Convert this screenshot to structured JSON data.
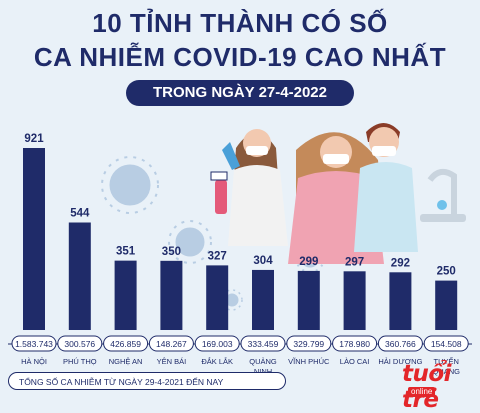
{
  "header": {
    "line1": "10 TỈNH THÀNH CÓ SỐ",
    "line2": "CA NHIỄM COVID-19 CAO NHẤT",
    "subtitle": "TRONG NGÀY 27-4-2022"
  },
  "footer": {
    "note": "TỔNG SỐ CA NHIỄM TỪ NGÀY 29-4-2021 ĐẾN NAY"
  },
  "logo": {
    "main": "tuổi trẻ",
    "sub": "online"
  },
  "colors": {
    "bar": "#1f2b69",
    "virus": "#b8cde3",
    "accent": "#e3262a"
  },
  "chart_data": {
    "type": "bar",
    "categories": [
      "HÀ NỘI",
      "PHÚ THỌ",
      "NGHỆ AN",
      "YÊN BÁI",
      "ĐẮK LẮK",
      "QUẢNG NINH",
      "VĨNH PHÚC",
      "LÀO CAI",
      "HẢI DƯƠNG",
      "TUYỂN QUANG"
    ],
    "category_lines": [
      [
        "HÀ NỘI"
      ],
      [
        "PHÚ THỌ"
      ],
      [
        "NGHỆ AN"
      ],
      [
        "YÊN BÁI"
      ],
      [
        "ĐẮK LẮK"
      ],
      [
        "QUẢNG",
        "NINH"
      ],
      [
        "VĨNH PHÚC"
      ],
      [
        "LÀO CAI"
      ],
      [
        "HẢI DƯƠNG"
      ],
      [
        "TUYỂN",
        "QUANG"
      ]
    ],
    "values": [
      921,
      544,
      351,
      350,
      327,
      304,
      299,
      297,
      292,
      250
    ],
    "value_labels": [
      "921",
      "544",
      "351",
      "350",
      "327",
      "304",
      "299",
      "297",
      "292",
      "250"
    ],
    "totals": [
      "1.583.743",
      "300.576",
      "426.859",
      "148.267",
      "169.003",
      "333.459",
      "329.799",
      "178.980",
      "360.766",
      "154.508"
    ],
    "ylim": [
      0,
      921
    ]
  }
}
